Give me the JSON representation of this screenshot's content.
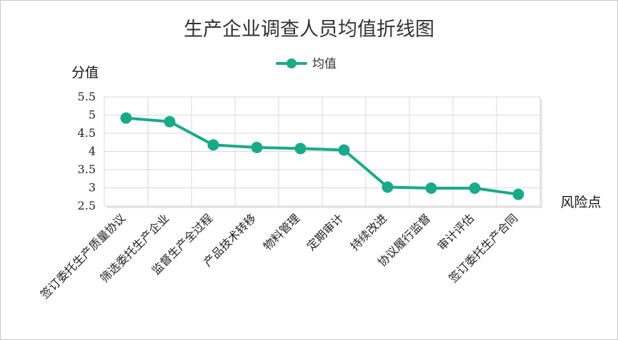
{
  "chart_data": {
    "type": "line",
    "title": "生产企业调查人员均值折线图",
    "xlabel": "风险点",
    "ylabel": "分值",
    "categories": [
      "签订委托生产质量协议",
      "筛选委托生产企业",
      "监督生产全过程",
      "产品技术转移",
      "物料管理",
      "定期审计",
      "持续改进",
      "协议履行监督",
      "审计评估",
      "签订委托生产合同"
    ],
    "series": [
      {
        "name": "均值",
        "values": [
          4.92,
          4.82,
          4.18,
          4.11,
          4.08,
          4.04,
          3.02,
          2.99,
          2.99,
          2.82
        ]
      }
    ],
    "ylim": [
      2.5,
      5.5
    ],
    "yticks": [
      "5.5",
      "5",
      "4.5",
      "4",
      "3.5",
      "3",
      "2.5"
    ],
    "grid": true,
    "legend": "top-center",
    "color": "#1aaa8a"
  }
}
